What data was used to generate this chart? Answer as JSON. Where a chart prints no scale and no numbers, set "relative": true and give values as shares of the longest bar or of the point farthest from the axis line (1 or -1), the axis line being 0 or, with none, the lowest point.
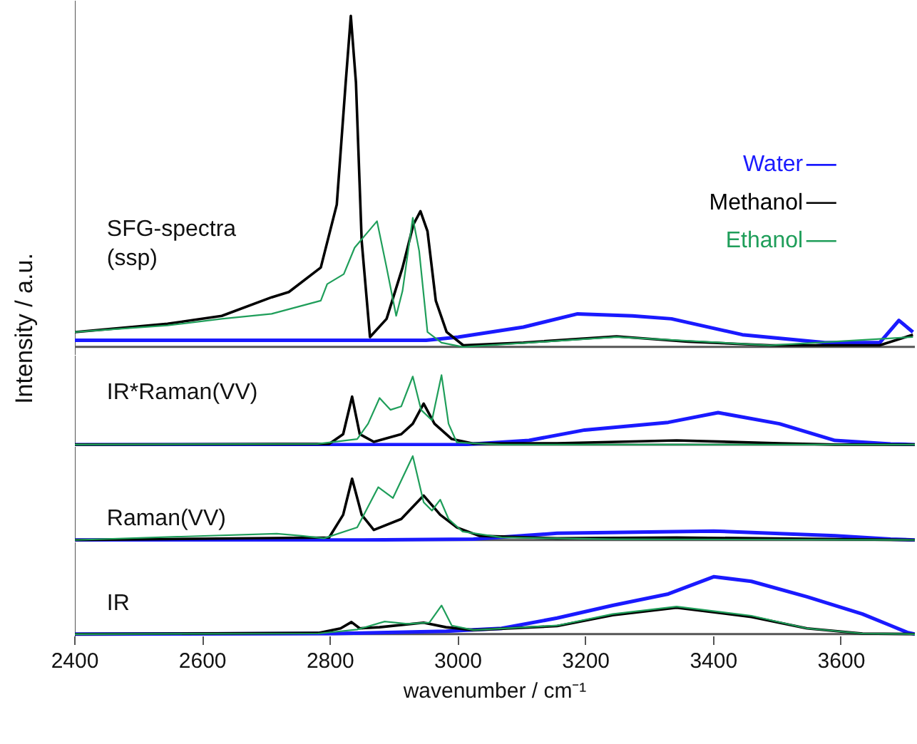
{
  "chart_data": [
    {
      "type": "line",
      "relative": true,
      "ylabel": "Intensity / a.u.",
      "xlim": [
        2400,
        3715
      ],
      "tick_labels": false,
      "legend": "right",
      "annotations": [
        "SFG-spectra\n(ssp)"
      ],
      "series": [
        {
          "name": "Water",
          "color": "#1a1aff",
          "x": [
            2400,
            2950,
            3000,
            3102,
            3187,
            3273,
            3334,
            3445,
            3574,
            3660,
            3690,
            3712
          ],
          "values": [
            0.02,
            0.02,
            0.03,
            0.06,
            0.1,
            0.094,
            0.085,
            0.037,
            0.013,
            0.013,
            0.08,
            0.045
          ]
        },
        {
          "name": "Methanol",
          "color": "#000000",
          "x": [
            2400,
            2545,
            2630,
            2708,
            2735,
            2785,
            2810,
            2824,
            2832,
            2840,
            2849,
            2862,
            2888,
            2913,
            2930,
            2941,
            2952,
            2965,
            2982,
            3008,
            3102,
            3248,
            3360,
            3488,
            3660,
            3712
          ],
          "values": [
            0.045,
            0.07,
            0.094,
            0.15,
            0.166,
            0.24,
            0.43,
            0.8,
            1.0,
            0.8,
            0.32,
            0.03,
            0.085,
            0.24,
            0.37,
            0.41,
            0.35,
            0.14,
            0.045,
            0.005,
            0.013,
            0.032,
            0.016,
            0.005,
            0.005,
            0.037
          ]
        },
        {
          "name": "Ethanol",
          "color": "#1f9e5a",
          "x": [
            2400,
            2545,
            2630,
            2708,
            2785,
            2795,
            2821,
            2838,
            2873,
            2888,
            2903,
            2913,
            2929,
            2939,
            2952,
            2974,
            3008,
            3248,
            3488,
            3712
          ],
          "values": [
            0.045,
            0.065,
            0.085,
            0.1,
            0.14,
            0.19,
            0.22,
            0.3,
            0.38,
            0.24,
            0.094,
            0.17,
            0.39,
            0.29,
            0.045,
            0.013,
            0.0,
            0.03,
            0.005,
            0.03
          ]
        }
      ]
    },
    {
      "type": "line",
      "relative": true,
      "xlim": [
        2400,
        3715
      ],
      "tick_labels": false,
      "annotations": [
        "IR*Raman(VV)"
      ],
      "series": [
        {
          "color": "#1a1aff",
          "x": [
            2400,
            2900,
            3007,
            3111,
            3198,
            3329,
            3407,
            3503,
            3590,
            3677,
            3715
          ],
          "values": [
            0,
            0,
            0,
            0.06,
            0.21,
            0.32,
            0.46,
            0.3,
            0.06,
            0.01,
            0
          ]
        },
        {
          "color": "#000000",
          "x": [
            2400,
            2798,
            2820,
            2834,
            2846,
            2868,
            2911,
            2929,
            2946,
            2963,
            2990,
            3024,
            3155,
            3342,
            3503,
            3590,
            3715
          ],
          "values": [
            0,
            0.01,
            0.15,
            0.69,
            0.15,
            0.04,
            0.15,
            0.3,
            0.59,
            0.3,
            0.08,
            0.015,
            0.02,
            0.06,
            0.02,
            0,
            0
          ]
        },
        {
          "color": "#1f9e5a",
          "x": [
            2400,
            2780,
            2842,
            2859,
            2877,
            2894,
            2911,
            2929,
            2942,
            2959,
            2974,
            2985,
            2998,
            3068,
            3715
          ],
          "values": [
            0,
            0.01,
            0.08,
            0.3,
            0.67,
            0.5,
            0.55,
            0.98,
            0.5,
            0.35,
            1.0,
            0.3,
            0.03,
            0,
            0
          ]
        }
      ]
    },
    {
      "type": "line",
      "relative": true,
      "xlim": [
        2400,
        3715
      ],
      "tick_labels": false,
      "annotations": [
        "Raman(VV)"
      ],
      "series": [
        {
          "color": "#1a1aff",
          "x": [
            2400,
            2850,
            3024,
            3155,
            3400,
            3590,
            3677,
            3715
          ],
          "values": [
            0,
            0,
            0.01,
            0.08,
            0.107,
            0.05,
            0.01,
            0
          ]
        },
        {
          "color": "#000000",
          "x": [
            2400,
            2798,
            2820,
            2834,
            2849,
            2868,
            2911,
            2946,
            2972,
            2998,
            3033,
            3155,
            3342,
            3715
          ],
          "values": [
            0,
            0.03,
            0.3,
            0.73,
            0.3,
            0.12,
            0.25,
            0.53,
            0.3,
            0.15,
            0.05,
            0.02,
            0.03,
            0
          ]
        },
        {
          "color": "#1f9e5a",
          "x": [
            2400,
            2716,
            2755,
            2790,
            2842,
            2875,
            2898,
            2929,
            2946,
            2959,
            2972,
            2985,
            3007,
            3068,
            3242,
            3715
          ],
          "values": [
            0,
            0.076,
            0.05,
            0.02,
            0.15,
            0.63,
            0.5,
            1.0,
            0.45,
            0.35,
            0.48,
            0.25,
            0.1,
            0.03,
            0.01,
            0
          ]
        }
      ]
    },
    {
      "type": "line",
      "relative": true,
      "xlim": [
        2400,
        3715
      ],
      "xticks": [
        2400,
        2600,
        2800,
        3000,
        3200,
        3400,
        3600
      ],
      "tick_labels": "x",
      "xlabel": "wavenumber / cm⁻¹",
      "annotations": [
        "IR"
      ],
      "series": [
        {
          "color": "#1a1aff",
          "x": [
            2400,
            2807,
            2981,
            3068,
            3155,
            3242,
            3329,
            3400,
            3459,
            3546,
            3633,
            3677,
            3703,
            3715
          ],
          "values": [
            0,
            0.01,
            0.05,
            0.1,
            0.28,
            0.5,
            0.7,
            1.0,
            0.92,
            0.65,
            0.35,
            0.15,
            0.03,
            0
          ]
        },
        {
          "color": "#000000",
          "x": [
            2400,
            2781,
            2816,
            2833,
            2846,
            2877,
            2946,
            2981,
            3024,
            3155,
            3242,
            3342,
            3459,
            3546,
            3633,
            3715
          ],
          "values": [
            0,
            0.02,
            0.1,
            0.21,
            0.1,
            0.12,
            0.2,
            0.12,
            0.07,
            0.14,
            0.33,
            0.46,
            0.3,
            0.1,
            0.01,
            0
          ]
        },
        {
          "color": "#1f9e5a",
          "x": [
            2400,
            2781,
            2842,
            2885,
            2920,
            2955,
            2974,
            2990,
            3024,
            3155,
            3242,
            3342,
            3459,
            3546,
            3633,
            3715
          ],
          "values": [
            0,
            0.01,
            0.08,
            0.22,
            0.18,
            0.2,
            0.5,
            0.15,
            0.07,
            0.15,
            0.35,
            0.48,
            0.32,
            0.1,
            0.01,
            0
          ]
        }
      ]
    }
  ]
}
